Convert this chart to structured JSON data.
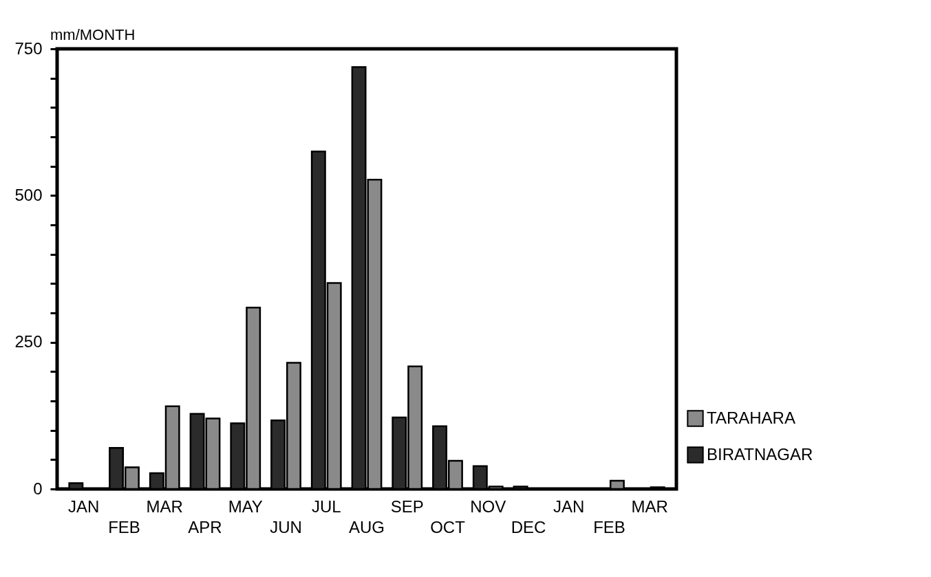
{
  "chart_data": {
    "type": "bar",
    "ylabel": "mm/MONTH",
    "categories": [
      "JAN",
      "FEB",
      "MAR",
      "APR",
      "MAY",
      "JUN",
      "JUL",
      "AUG",
      "SEP",
      "OCT",
      "NOV",
      "DEC",
      "JAN",
      "FEB",
      "MAR"
    ],
    "series": [
      {
        "name": "BIRATNAGAR",
        "color": "#2b2b2b",
        "values": [
          10,
          70,
          27,
          128,
          112,
          117,
          575,
          719,
          122,
          107,
          39,
          4,
          null,
          null,
          null
        ]
      },
      {
        "name": "TARAHARA",
        "color": "#8a8a8a",
        "values": [
          null,
          37,
          141,
          120,
          309,
          215,
          351,
          527,
          209,
          48,
          4,
          null,
          null,
          14,
          3
        ]
      }
    ],
    "ylim": [
      0,
      750
    ],
    "yticks": [
      0,
      {
        "value": 50,
        "label": null
      },
      {
        "value": 100,
        "label": null
      },
      {
        "value": 150,
        "label": null
      },
      {
        "value": 200,
        "label": null
      },
      250,
      {
        "value": 300,
        "label": null
      },
      {
        "value": 350,
        "label": null
      },
      {
        "value": 400,
        "label": null
      },
      {
        "value": 450,
        "label": null
      },
      500,
      {
        "value": 550,
        "label": null
      },
      {
        "value": 600,
        "label": null
      },
      {
        "value": 650,
        "label": null
      },
      {
        "value": 700,
        "label": null
      },
      750
    ],
    "legend": "bottom right"
  }
}
